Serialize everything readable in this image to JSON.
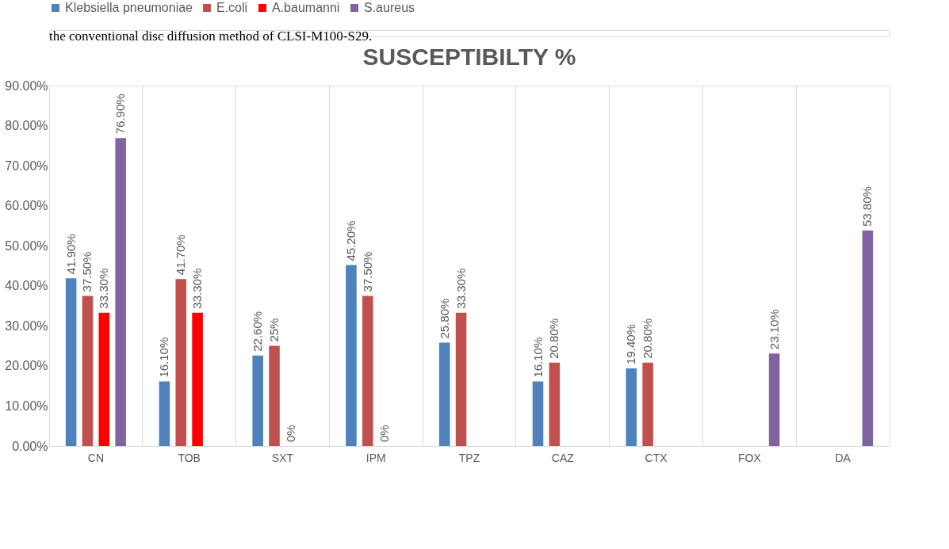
{
  "chart_data": {
    "type": "bar",
    "title": "SUSCEPTIBILTY %",
    "annotations": [
      "the conventional disc diffusion method of CLSI-M100-S29."
    ],
    "categories": [
      "CN",
      "TOB",
      "SXT",
      "IPM",
      "TPZ",
      "CAZ",
      "CTX",
      "FOX",
      "DA"
    ],
    "series": [
      {
        "name": "Klebsiella pneumoniae",
        "color": "#4f81bd",
        "values": [
          41.9,
          16.1,
          22.6,
          45.2,
          25.8,
          16.1,
          19.4,
          null,
          null
        ],
        "value_labels": [
          "41.90%",
          "16.10%",
          "22.60%",
          "45.20%",
          "25.80%",
          "16.10%",
          "19.40%",
          null,
          null
        ]
      },
      {
        "name": "E.coli",
        "color": "#c0504d",
        "values": [
          37.5,
          41.7,
          25,
          37.5,
          33.3,
          20.8,
          20.8,
          null,
          null
        ],
        "value_labels": [
          "37.50%",
          "41.70%",
          "25%",
          "37.50%",
          "33.30%",
          "20.80%",
          "20.80%",
          null,
          null
        ]
      },
      {
        "name": "A.baumanni",
        "color": "#ff0000",
        "values": [
          33.3,
          33.3,
          0,
          0,
          null,
          null,
          null,
          null,
          null
        ],
        "value_labels": [
          "33.30%",
          "33.30%",
          "0%",
          "0%",
          null,
          null,
          null,
          null,
          null
        ]
      },
      {
        "name": "S.aureus",
        "color": "#8064a2",
        "values": [
          76.9,
          null,
          null,
          null,
          null,
          null,
          null,
          23.1,
          53.8
        ],
        "value_labels": [
          "76.90%",
          null,
          null,
          null,
          null,
          null,
          null,
          "23.10%",
          "53.80%"
        ]
      }
    ],
    "ylim": [
      0,
      90
    ],
    "yticks": [
      {
        "value": 0,
        "label": "0.00%"
      },
      {
        "value": 10,
        "label": "10.00%"
      },
      {
        "value": 20,
        "label": "20.00%"
      },
      {
        "value": 30,
        "label": "30.00%"
      },
      {
        "value": 40,
        "label": "40.00%"
      },
      {
        "value": 50,
        "label": "50.00%"
      },
      {
        "value": 60,
        "label": "60.00%"
      },
      {
        "value": 70,
        "label": "70.00%"
      },
      {
        "value": 80,
        "label": "80.00%"
      },
      {
        "value": 90,
        "label": "90.00%"
      }
    ],
    "grid": "x",
    "legend": "top"
  }
}
